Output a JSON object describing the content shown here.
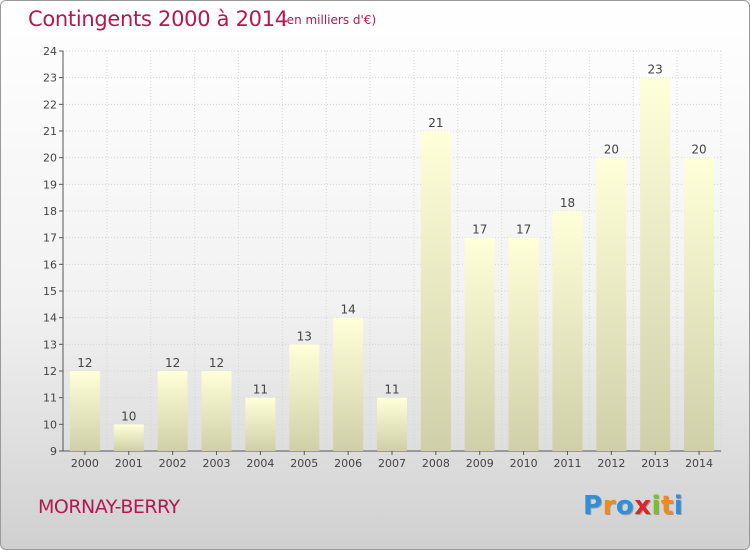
{
  "title": "Contingents 2000 à 2014",
  "subtitle": "(en milliers d'€)",
  "commune": "MORNAY-BERRY",
  "logo": {
    "letters": [
      "P",
      "r",
      "o",
      "x",
      "i",
      "t",
      "i"
    ],
    "colors": [
      "#2f8fd8",
      "#f08a1c",
      "#2f8fd8",
      "#d8262c",
      "#7cbf2a",
      "#f08a1c",
      "#2f8fd8"
    ]
  },
  "chart_data": {
    "type": "bar",
    "categories": [
      "2000",
      "2001",
      "2002",
      "2003",
      "2004",
      "2005",
      "2006",
      "2007",
      "2008",
      "2009",
      "2010",
      "2011",
      "2012",
      "2013",
      "2014"
    ],
    "values": [
      12,
      10,
      12,
      12,
      11,
      13,
      14,
      11,
      21,
      17,
      17,
      18,
      20,
      23,
      20
    ],
    "value_labels": [
      "12",
      "10",
      "12",
      "12",
      "11",
      "13",
      "14",
      "11",
      "21",
      "17",
      "17",
      "18",
      "20",
      "23",
      "20"
    ],
    "yticks": [
      "9",
      "10",
      "11",
      "12",
      "13",
      "14",
      "15",
      "16",
      "17",
      "18",
      "19",
      "20",
      "21",
      "22",
      "23",
      "24"
    ],
    "ylim": [
      9,
      24
    ],
    "grid": true,
    "bar_color_top": "#ffffd8",
    "bar_color_bottom": "#cfcfa8"
  }
}
